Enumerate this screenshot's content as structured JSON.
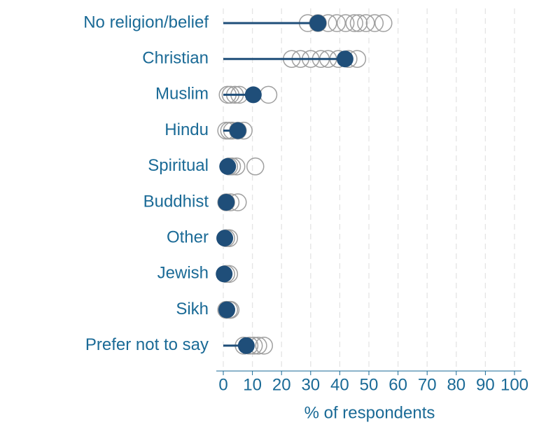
{
  "chart_data": {
    "type": "dot",
    "xlabel": "% of respondents",
    "categories": [
      "No religion/belief",
      "Christian",
      "Muslim",
      "Hindu",
      "Spiritual",
      "Buddhist",
      "Other",
      "Jewish",
      "Sikh",
      "Prefer not to say"
    ],
    "values": [
      32.5,
      41.8,
      10.3,
      5,
      1.5,
      1,
      0.5,
      0.3,
      1.2,
      7.9
    ],
    "color": "#1f4e79",
    "comparison": [
      [
        29,
        32.5,
        36,
        39,
        42,
        45,
        46.5,
        49,
        52,
        55
      ],
      [
        23.5,
        26.5,
        30,
        33.5,
        36,
        39.5,
        43,
        46
      ],
      [
        1.5,
        2.5,
        4,
        5.5,
        15.5
      ],
      [
        1,
        2,
        3,
        5,
        7
      ],
      [
        2,
        3,
        4.5,
        11
      ],
      [
        1,
        2.5,
        5
      ],
      [
        1,
        2
      ],
      [
        1,
        2
      ],
      [
        1,
        2,
        2.5
      ],
      [
        7,
        9,
        10.5,
        12,
        14
      ]
    ],
    "comparison_color": "#a0a0a0",
    "xlim": [
      0,
      100
    ],
    "xticks": [
      0,
      10,
      20,
      30,
      40,
      50,
      60,
      70,
      80,
      90,
      100
    ],
    "grid": true
  }
}
